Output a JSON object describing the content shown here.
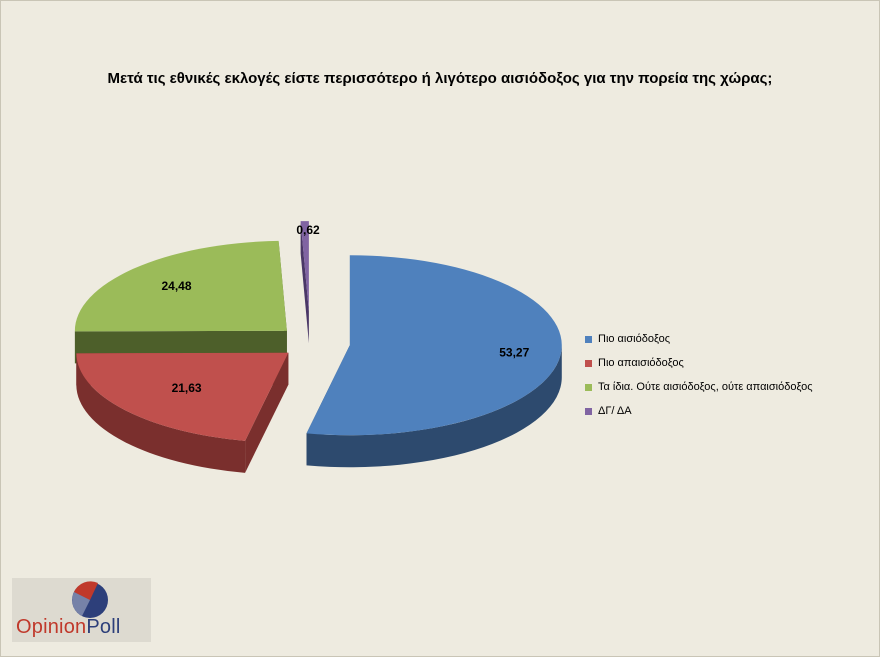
{
  "chart_data": {
    "type": "pie",
    "title": "Μετά τις εθνικές εκλογές είστε περισσότερο ή λιγότερο αισιόδοξος για την πορεία της χώρας;",
    "categories": [
      "Πιο αισιόδοξος",
      "Πιο απαισιόδοξος",
      "Τα ίδια. Ούτε αισιόδοξος, ούτε απαισιόδοξος",
      "ΔΓ/ ΔΑ"
    ],
    "values": [
      53.27,
      21.63,
      24.48,
      0.62
    ],
    "value_labels": [
      "53,27",
      "21,63",
      "24,48",
      "0,62"
    ],
    "colors": [
      "#4f81bd",
      "#c0504d",
      "#9bbb59",
      "#8064a2"
    ],
    "side_colors": [
      "#2d4a6e",
      "#7a2f2d",
      "#4d5f2a",
      "#4a3766"
    ],
    "legend_position": "right",
    "exploded": true,
    "three_d": true
  },
  "logo": {
    "text_part1": "Opinion",
    "text_part2": "Poll"
  }
}
